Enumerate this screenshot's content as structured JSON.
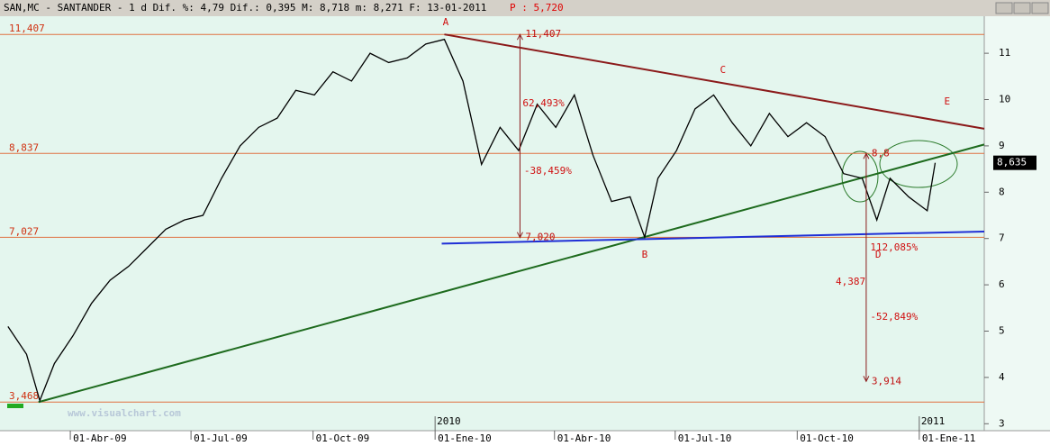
{
  "header": {
    "title": "SAN,MC - SANTANDER -  1 d Dif. %: 4,79 Dif.: 0,395 M: 8,718 m: 8,271 F: 13-01-2011",
    "extra": "P : 5,720"
  },
  "chart_data": {
    "type": "line",
    "x": [
      "2009-02-13",
      "2009-02-27",
      "2009-03-09",
      "2009-03-20",
      "2009-04-03",
      "2009-04-17",
      "2009-05-01",
      "2009-05-15",
      "2009-05-29",
      "2009-06-12",
      "2009-06-26",
      "2009-07-10",
      "2009-07-24",
      "2009-08-07",
      "2009-08-21",
      "2009-09-04",
      "2009-09-18",
      "2009-10-02",
      "2009-10-16",
      "2009-10-30",
      "2009-11-13",
      "2009-11-27",
      "2009-12-11",
      "2009-12-25",
      "2010-01-08",
      "2010-01-22",
      "2010-02-05",
      "2010-02-19",
      "2010-03-05",
      "2010-03-19",
      "2010-04-02",
      "2010-04-16",
      "2010-04-30",
      "2010-05-14",
      "2010-05-28",
      "2010-06-08",
      "2010-06-18",
      "2010-07-02",
      "2010-07-16",
      "2010-07-30",
      "2010-08-13",
      "2010-08-27",
      "2010-09-10",
      "2010-09-24",
      "2010-10-08",
      "2010-10-22",
      "2010-11-05",
      "2010-11-19",
      "2010-11-30",
      "2010-12-10",
      "2010-12-24",
      "2011-01-07",
      "2011-01-13"
    ],
    "series": [
      {
        "color": "#000000",
        "values": [
          5.1,
          4.5,
          3.5,
          4.3,
          4.9,
          5.6,
          6.1,
          6.4,
          6.8,
          7.2,
          7.4,
          7.5,
          8.3,
          9.0,
          9.4,
          9.6,
          10.2,
          10.1,
          10.6,
          10.4,
          11.0,
          10.8,
          10.9,
          11.2,
          11.3,
          10.4,
          8.6,
          9.4,
          8.9,
          9.9,
          9.4,
          10.1,
          8.8,
          7.8,
          7.9,
          7.03,
          8.3,
          8.9,
          9.8,
          10.1,
          9.5,
          9.0,
          9.7,
          9.2,
          9.5,
          9.2,
          8.4,
          8.3,
          7.4,
          8.3,
          7.9,
          7.6,
          8.635
        ]
      }
    ],
    "xlim": [
      "2009-02-07",
      "2011-02-19"
    ],
    "xticks": [
      {
        "value": "2009-04-01",
        "label": "01-Abr-09"
      },
      {
        "value": "2009-07-01",
        "label": "01-Jul-09"
      },
      {
        "value": "2009-10-01",
        "label": "01-Oct-09"
      },
      {
        "value": "2010-01-01",
        "label": "01-Ene-10"
      },
      {
        "value": "2010-04-01",
        "label": "01-Abr-10"
      },
      {
        "value": "2010-07-01",
        "label": "01-Jul-10"
      },
      {
        "value": "2010-10-01",
        "label": "01-Oct-10"
      },
      {
        "value": "2011-01-01",
        "label": "01-Ene-11"
      }
    ],
    "year_marks": [
      {
        "value": "2010-01-01",
        "label": "2010"
      },
      {
        "value": "2011-01-01",
        "label": "2011"
      }
    ],
    "ylim": [
      2.85,
      11.8
    ],
    "yticks": [
      3,
      4,
      5,
      6,
      7,
      8,
      9,
      10,
      11
    ],
    "last": {
      "value": 8.635,
      "label": "8,635"
    },
    "ref_lines": [
      {
        "value": 11.407,
        "label": "11,407"
      },
      {
        "value": 8.837,
        "label": "8,837"
      },
      {
        "value": 7.027,
        "label": "7,027"
      },
      {
        "value": 3.468,
        "label": "3,468"
      }
    ],
    "trendlines": [
      {
        "color": "#8b1a1a",
        "x": [
          "2010-01-08",
          "2011-02-19"
        ],
        "y": [
          11.407,
          9.37
        ]
      },
      {
        "color": "#1e6b1e",
        "x": [
          "2009-03-08",
          "2011-02-19"
        ],
        "y": [
          3.468,
          9.03
        ]
      },
      {
        "color": "#1f2fd6",
        "x": [
          "2010-01-06",
          "2011-02-19"
        ],
        "y": [
          6.89,
          7.15
        ]
      }
    ],
    "measures": [
      {
        "x": "2010-03-06",
        "from": {
          "value": 11.407,
          "label": "11,407"
        },
        "to": {
          "value": 7.02,
          "label": "7,020"
        }
      },
      {
        "x": "2010-11-22",
        "from": {
          "value": 8.837,
          "label": "8,8"
        },
        "to": {
          "value": 3.914,
          "label": "3,914"
        }
      }
    ],
    "annotations": [
      {
        "text": "A",
        "x": "2010-01-09",
        "y": 11.66
      },
      {
        "text": "B",
        "x": "2010-06-08",
        "y": 6.64
      },
      {
        "text": "C",
        "x": "2010-08-06",
        "y": 10.63
      },
      {
        "text": "D",
        "x": "2010-12-01",
        "y": 6.64
      },
      {
        "text": "E",
        "x": "2011-01-22",
        "y": 9.95
      },
      {
        "text": "-38,459%",
        "x": "2010-03-09",
        "y": 8.45
      },
      {
        "text": "62,493%",
        "x": "2010-03-08",
        "y": 9.91
      },
      {
        "text": "4,387",
        "x": "2010-10-30",
        "y": 6.06
      },
      {
        "text": "-52,849%",
        "x": "2010-11-25",
        "y": 5.3
      },
      {
        "text": "112,085%",
        "x": "2010-11-25",
        "y": 6.8
      }
    ]
  },
  "watermark": "www.visualchart.com"
}
